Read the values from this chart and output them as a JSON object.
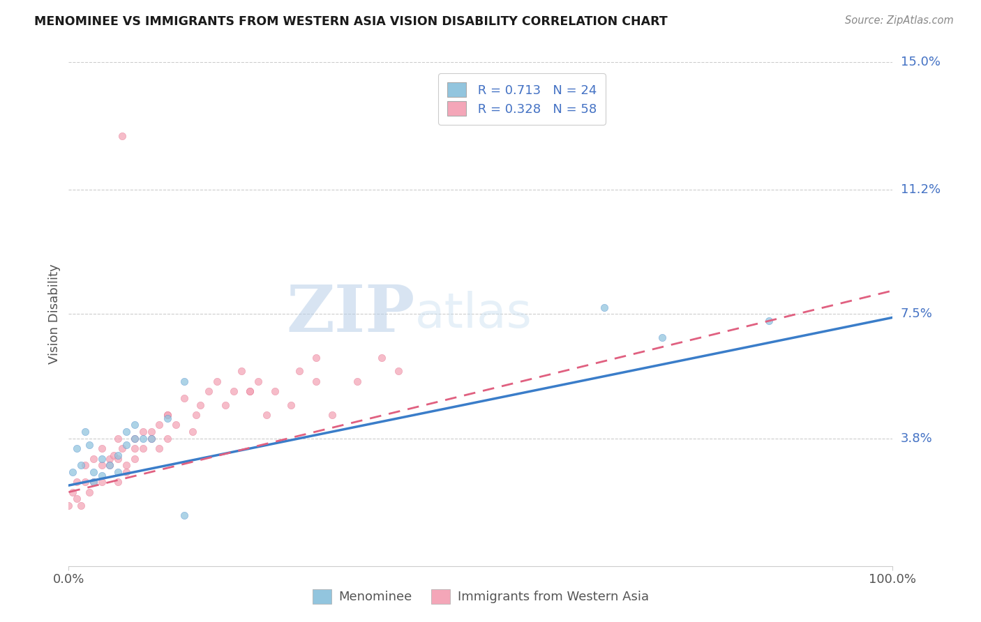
{
  "title": "MENOMINEE VS IMMIGRANTS FROM WESTERN ASIA VISION DISABILITY CORRELATION CHART",
  "source_text": "Source: ZipAtlas.com",
  "ylabel": "Vision Disability",
  "xlim": [
    0,
    1.0
  ],
  "ylim": [
    0,
    0.15
  ],
  "yticks": [
    0.038,
    0.075,
    0.112,
    0.15
  ],
  "ytick_labels": [
    "3.8%",
    "7.5%",
    "11.2%",
    "15.0%"
  ],
  "xtick_labels": [
    "0.0%",
    "100.0%"
  ],
  "legend_r1": "R = 0.713",
  "legend_n1": "N = 24",
  "legend_r2": "R = 0.328",
  "legend_n2": "N = 58",
  "color_blue": "#92c5de",
  "color_pink": "#f4a6b8",
  "color_blue_line": "#3a7dc9",
  "color_pink_line": "#e06080",
  "color_axis_label": "#4472c4",
  "watermark_zip": "ZIP",
  "watermark_atlas": "atlas",
  "menominee_x": [
    0.005,
    0.01,
    0.015,
    0.02,
    0.025,
    0.03,
    0.03,
    0.04,
    0.04,
    0.05,
    0.06,
    0.06,
    0.07,
    0.07,
    0.08,
    0.08,
    0.09,
    0.1,
    0.12,
    0.14,
    0.65,
    0.72,
    0.85,
    0.14
  ],
  "menominee_y": [
    0.028,
    0.035,
    0.03,
    0.04,
    0.036,
    0.028,
    0.025,
    0.032,
    0.027,
    0.03,
    0.033,
    0.028,
    0.04,
    0.036,
    0.038,
    0.042,
    0.038,
    0.038,
    0.044,
    0.055,
    0.077,
    0.068,
    0.073,
    0.015
  ],
  "immigrants_x": [
    0.0,
    0.005,
    0.01,
    0.01,
    0.015,
    0.02,
    0.02,
    0.025,
    0.03,
    0.03,
    0.04,
    0.04,
    0.04,
    0.05,
    0.05,
    0.055,
    0.06,
    0.06,
    0.065,
    0.07,
    0.07,
    0.08,
    0.08,
    0.09,
    0.09,
    0.1,
    0.1,
    0.11,
    0.11,
    0.12,
    0.12,
    0.13,
    0.14,
    0.15,
    0.155,
    0.16,
    0.17,
    0.18,
    0.19,
    0.2,
    0.21,
    0.22,
    0.23,
    0.24,
    0.25,
    0.27,
    0.28,
    0.3,
    0.32,
    0.35,
    0.38,
    0.4,
    0.065,
    0.3,
    0.22,
    0.12,
    0.08,
    0.06
  ],
  "immigrants_y": [
    0.018,
    0.022,
    0.02,
    0.025,
    0.018,
    0.025,
    0.03,
    0.022,
    0.025,
    0.032,
    0.03,
    0.025,
    0.035,
    0.032,
    0.03,
    0.033,
    0.038,
    0.025,
    0.035,
    0.03,
    0.028,
    0.038,
    0.032,
    0.04,
    0.035,
    0.04,
    0.038,
    0.035,
    0.042,
    0.038,
    0.045,
    0.042,
    0.05,
    0.04,
    0.045,
    0.048,
    0.052,
    0.055,
    0.048,
    0.052,
    0.058,
    0.052,
    0.055,
    0.045,
    0.052,
    0.048,
    0.058,
    0.055,
    0.045,
    0.055,
    0.062,
    0.058,
    0.128,
    0.062,
    0.052,
    0.045,
    0.035,
    0.032
  ],
  "blue_line_x0": 0.0,
  "blue_line_y0": 0.024,
  "blue_line_x1": 1.0,
  "blue_line_y1": 0.074,
  "pink_line_x0": 0.0,
  "pink_line_y0": 0.022,
  "pink_line_x1": 1.0,
  "pink_line_y1": 0.082
}
